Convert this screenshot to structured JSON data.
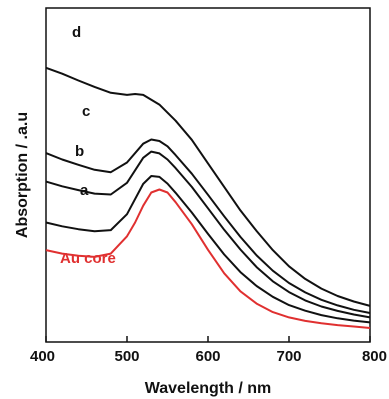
{
  "chart_data": {
    "type": "line",
    "xlabel": "Wavelength / nm",
    "ylabel": "Absorption / .a.u",
    "xlim": [
      400,
      800
    ],
    "ylim": [
      0,
      100
    ],
    "x_ticks": [
      "400",
      "500",
      "600",
      "700",
      "800"
    ],
    "y_ticks": [],
    "grid": false,
    "legend": "inline labels",
    "colors": {
      "au_core": "#e03030",
      "others": "#111111"
    },
    "series": [
      {
        "name": "d",
        "color": "#111111",
        "x": [
          400,
          420,
          440,
          460,
          480,
          500,
          510,
          520,
          540,
          560,
          580,
          600,
          620,
          640,
          660,
          680,
          700,
          720,
          740,
          760,
          780,
          800
        ],
        "y": [
          88.5,
          86.5,
          84.2,
          82.0,
          80.0,
          79.3,
          79.6,
          79.3,
          76.0,
          70.5,
          64.0,
          56.0,
          48.0,
          40.0,
          33.0,
          26.5,
          21.0,
          16.7,
          13.4,
          10.9,
          9.0,
          7.5
        ]
      },
      {
        "name": "c",
        "color": "#111111",
        "x": [
          400,
          420,
          440,
          460,
          480,
          500,
          520,
          530,
          540,
          550,
          560,
          580,
          600,
          620,
          640,
          660,
          680,
          700,
          720,
          740,
          760,
          780,
          800
        ],
        "y": [
          59.5,
          57.3,
          55.5,
          53.8,
          53.0,
          56.3,
          62.7,
          64.1,
          63.6,
          61.8,
          58.8,
          52.5,
          45.3,
          38.0,
          31.0,
          24.7,
          19.5,
          15.3,
          12.1,
          9.6,
          7.7,
          6.2,
          5.1
        ]
      },
      {
        "name": "b",
        "color": "#111111",
        "x": [
          400,
          420,
          440,
          460,
          480,
          500,
          520,
          530,
          540,
          550,
          560,
          580,
          600,
          620,
          640,
          660,
          680,
          700,
          720,
          740,
          760,
          780,
          800
        ],
        "y": [
          49.8,
          48.2,
          46.9,
          45.7,
          45.4,
          49.4,
          57.9,
          60.0,
          59.4,
          57.3,
          54.4,
          48.0,
          40.7,
          33.4,
          26.7,
          20.7,
          15.9,
          12.2,
          9.4,
          7.3,
          5.8,
          4.6,
          3.6
        ]
      },
      {
        "name": "a",
        "color": "#111111",
        "x": [
          400,
          420,
          440,
          460,
          480,
          500,
          520,
          530,
          540,
          550,
          560,
          580,
          600,
          620,
          640,
          660,
          680,
          700,
          720,
          740,
          760,
          780,
          800
        ],
        "y": [
          35.9,
          34.6,
          33.6,
          32.9,
          33.3,
          38.7,
          49.0,
          51.7,
          51.4,
          49.1,
          46.0,
          39.3,
          32.0,
          25.0,
          19.0,
          14.3,
          10.6,
          7.8,
          5.9,
          4.4,
          3.3,
          2.5,
          1.9
        ]
      },
      {
        "name": "Au core",
        "color": "#e03030",
        "x": [
          400,
          420,
          440,
          460,
          480,
          500,
          510,
          520,
          530,
          540,
          550,
          560,
          580,
          600,
          620,
          640,
          660,
          680,
          700,
          720,
          740,
          760,
          780,
          800
        ],
        "y": [
          26.5,
          25.3,
          24.6,
          24.2,
          25.3,
          31.2,
          35.9,
          41.6,
          46.1,
          47.1,
          46.1,
          42.8,
          35.3,
          26.6,
          18.6,
          12.5,
          8.3,
          5.4,
          3.6,
          2.4,
          1.6,
          1.0,
          0.5,
          0.0
        ]
      }
    ]
  }
}
